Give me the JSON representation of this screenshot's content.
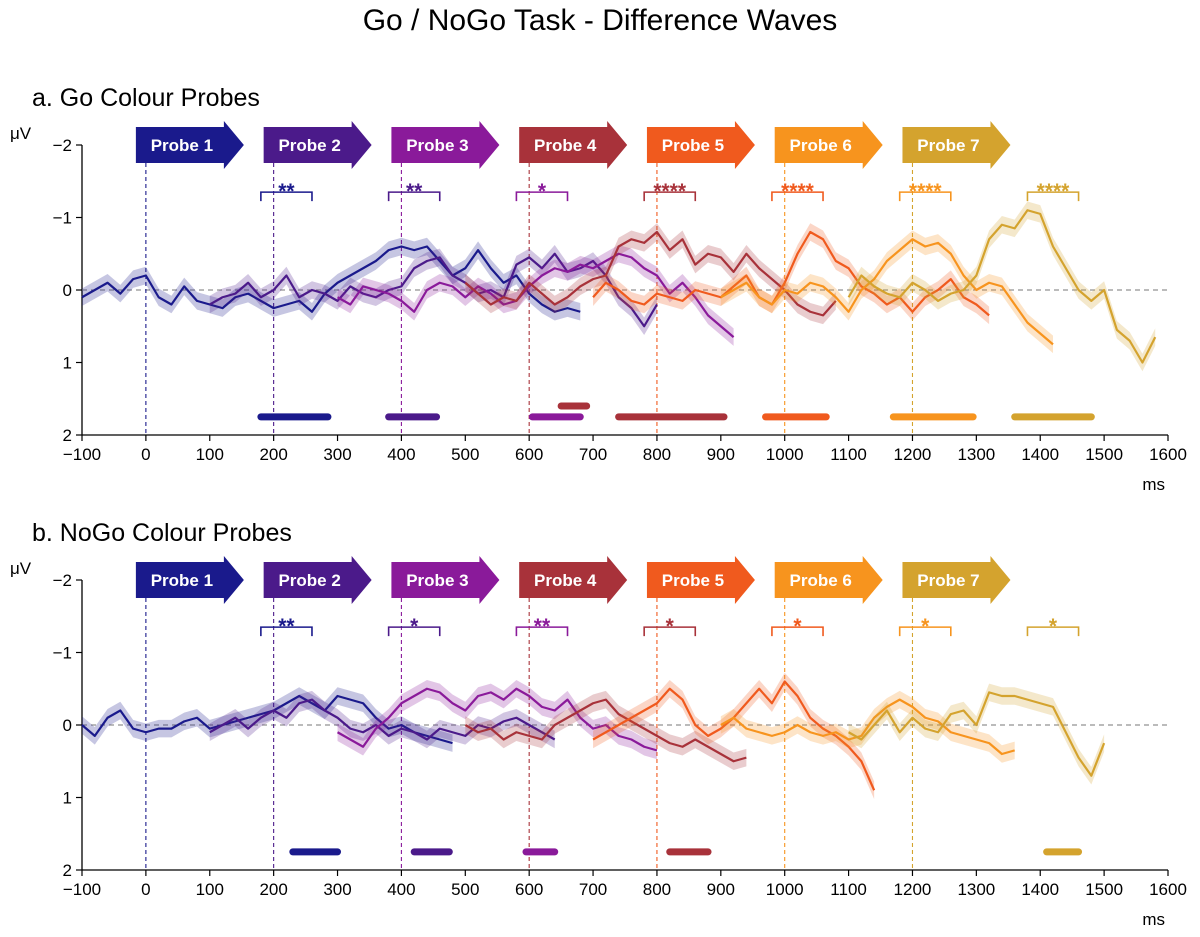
{
  "title": "Go / NoGo Task - Difference Waves",
  "colors": [
    "#1a1a8c",
    "#4b1a8a",
    "#8a1a9a",
    "#a8323a",
    "#f05a1e",
    "#f7941e",
    "#d4a32e"
  ],
  "chart_data": [
    {
      "type": "line",
      "title": "a.   Go Colour Probes",
      "xlabel": "ms",
      "ylabel": "μV",
      "xlim": [
        -100,
        1600
      ],
      "ylim": [
        2,
        -2
      ],
      "y_inverted": true,
      "xticks": [
        "−100",
        "0",
        "100",
        "200",
        "300",
        "400",
        "500",
        "600",
        "700",
        "800",
        "900",
        "1000",
        "1100",
        "1200",
        "1300",
        "1400",
        "1500",
        "1600"
      ],
      "yticks": [
        "−2",
        "−1",
        "0",
        "1",
        "2"
      ],
      "zero_line": "dashed grey",
      "probes": [
        {
          "label": "Probe 1",
          "onset": 0
        },
        {
          "label": "Probe 2",
          "onset": 200
        },
        {
          "label": "Probe 3",
          "onset": 400
        },
        {
          "label": "Probe 4",
          "onset": 600
        },
        {
          "label": "Probe 5",
          "onset": 800
        },
        {
          "label": "Probe 6",
          "onset": 1000
        },
        {
          "label": "Probe 7",
          "onset": 1200
        }
      ],
      "brackets": [
        {
          "from": 180,
          "to": 260,
          "stars": "**",
          "color_index": 0
        },
        {
          "from": 380,
          "to": 460,
          "stars": "**",
          "color_index": 1
        },
        {
          "from": 580,
          "to": 660,
          "stars": "*",
          "color_index": 2
        },
        {
          "from": 780,
          "to": 860,
          "stars": "****",
          "color_index": 3
        },
        {
          "from": 980,
          "to": 1060,
          "stars": "****",
          "color_index": 4
        },
        {
          "from": 1180,
          "to": 1260,
          "stars": "****",
          "color_index": 5
        },
        {
          "from": 1380,
          "to": 1460,
          "stars": "****",
          "color_index": 6
        }
      ],
      "sig_bars": [
        {
          "from": 180,
          "to": 285,
          "y": 1.75,
          "color_index": 0
        },
        {
          "from": 380,
          "to": 455,
          "y": 1.75,
          "color_index": 1
        },
        {
          "from": 605,
          "to": 680,
          "y": 1.75,
          "color_index": 2
        },
        {
          "from": 650,
          "to": 690,
          "y": 1.6,
          "color_index": 3
        },
        {
          "from": 740,
          "to": 905,
          "y": 1.75,
          "color_index": 3
        },
        {
          "from": 970,
          "to": 1065,
          "y": 1.75,
          "color_index": 4
        },
        {
          "from": 1170,
          "to": 1295,
          "y": 1.75,
          "color_index": 5
        },
        {
          "from": 1360,
          "to": 1480,
          "y": 1.75,
          "color_index": 6
        }
      ],
      "series": [
        {
          "color_index": 0,
          "x_start": -100,
          "values": [
            0.1,
            0.0,
            -0.1,
            0.05,
            -0.15,
            -0.2,
            0.1,
            0.2,
            -0.05,
            0.15,
            0.2,
            0.25,
            0.1,
            0.05,
            0.15,
            0.25,
            0.2,
            0.15,
            0.3,
            0.05,
            -0.1,
            -0.2,
            -0.3,
            -0.4,
            -0.55,
            -0.6,
            -0.55,
            -0.6,
            -0.4,
            -0.2,
            -0.3,
            -0.55,
            -0.3,
            -0.1,
            -0.2,
            0.05,
            0.2,
            0.3,
            0.25,
            0.3
          ]
        },
        {
          "color_index": 1,
          "x_start": 100,
          "values": [
            0.2,
            0.1,
            0.05,
            -0.1,
            0.1,
            0.0,
            -0.2,
            0.1,
            0.0,
            0.05,
            0.15,
            -0.05,
            0.05,
            0.1,
            0.0,
            -0.05,
            -0.3,
            -0.4,
            -0.45,
            -0.2,
            -0.1,
            0.05,
            0.0,
            0.1,
            -0.35,
            -0.45,
            -0.3,
            -0.5,
            -0.25,
            -0.3,
            -0.4,
            -0.2,
            0.1,
            0.25,
            0.5,
            0.2
          ]
        },
        {
          "color_index": 2,
          "x_start": 300,
          "values": [
            0.1,
            0.2,
            -0.05,
            0.0,
            0.05,
            0.15,
            0.3,
            0.0,
            -0.1,
            -0.05,
            0.1,
            -0.05,
            0.05,
            0.2,
            0.15,
            -0.05,
            -0.2,
            -0.3,
            -0.25,
            -0.35,
            -0.3,
            -0.4,
            -0.5,
            -0.45,
            -0.3,
            -0.2,
            0.05,
            -0.1,
            0.1,
            0.35,
            0.5,
            0.65
          ]
        },
        {
          "color_index": 3,
          "x_start": 500,
          "values": [
            -0.1,
            0.05,
            0.2,
            0.1,
            0.15,
            -0.1,
            0.05,
            0.2,
            0.1,
            -0.05,
            -0.15,
            -0.2,
            -0.6,
            -0.7,
            -0.65,
            -0.8,
            -0.55,
            -0.7,
            -0.35,
            -0.5,
            -0.45,
            -0.25,
            -0.5,
            -0.3,
            -0.15,
            0.0,
            0.2,
            0.3,
            0.35,
            0.15
          ]
        },
        {
          "color_index": 4,
          "x_start": 700,
          "values": [
            0.1,
            -0.1,
            0.0,
            0.15,
            0.2,
            0.05,
            0.1,
            0.15,
            0.0,
            0.05,
            0.1,
            -0.05,
            -0.2,
            0.1,
            0.2,
            -0.1,
            -0.5,
            -0.8,
            -0.7,
            -0.4,
            -0.3,
            -0.05,
            0.05,
            0.2,
            0.1,
            0.3,
            0.1,
            0.0,
            -0.15,
            0.1,
            0.2,
            0.35
          ]
        },
        {
          "color_index": 5,
          "x_start": 900,
          "values": [
            0.1,
            0.0,
            -0.1,
            0.1,
            0.2,
            0.0,
            0.05,
            -0.1,
            -0.05,
            0.1,
            0.3,
            0.0,
            -0.15,
            -0.4,
            -0.55,
            -0.7,
            -0.6,
            -0.65,
            -0.5,
            -0.2,
            0.0,
            -0.1,
            -0.05,
            0.2,
            0.45,
            0.6,
            0.75
          ]
        },
        {
          "color_index": 6,
          "x_start": 1100,
          "values": [
            0.1,
            -0.2,
            -0.05,
            0.05,
            0.1,
            -0.1,
            0.0,
            0.15,
            0.05,
            0.0,
            -0.2,
            -0.7,
            -0.9,
            -0.85,
            -1.1,
            -1.05,
            -0.6,
            -0.3,
            0.0,
            0.15,
            0.0,
            0.55,
            0.7,
            1.0,
            0.65
          ]
        }
      ]
    },
    {
      "type": "line",
      "title": "b.   NoGo Colour Probes",
      "xlabel": "ms",
      "ylabel": "μV",
      "xlim": [
        -100,
        1600
      ],
      "ylim": [
        2,
        -2
      ],
      "y_inverted": true,
      "xticks": [
        "−100",
        "0",
        "100",
        "200",
        "300",
        "400",
        "500",
        "600",
        "700",
        "800",
        "900",
        "1000",
        "1100",
        "1200",
        "1300",
        "1400",
        "1500",
        "1600"
      ],
      "yticks": [
        "−2",
        "−1",
        "0",
        "1",
        "2"
      ],
      "zero_line": "dashed grey",
      "probes": [
        {
          "label": "Probe 1",
          "onset": 0
        },
        {
          "label": "Probe 2",
          "onset": 200
        },
        {
          "label": "Probe 3",
          "onset": 400
        },
        {
          "label": "Probe 4",
          "onset": 600
        },
        {
          "label": "Probe 5",
          "onset": 800
        },
        {
          "label": "Probe 6",
          "onset": 1000
        },
        {
          "label": "Probe 7",
          "onset": 1200
        }
      ],
      "brackets": [
        {
          "from": 180,
          "to": 260,
          "stars": "**",
          "color_index": 0
        },
        {
          "from": 380,
          "to": 460,
          "stars": "*",
          "color_index": 1
        },
        {
          "from": 580,
          "to": 660,
          "stars": "**",
          "color_index": 2
        },
        {
          "from": 780,
          "to": 860,
          "stars": "*",
          "color_index": 3
        },
        {
          "from": 980,
          "to": 1060,
          "stars": "*",
          "color_index": 4
        },
        {
          "from": 1180,
          "to": 1260,
          "stars": "*",
          "color_index": 5
        },
        {
          "from": 1380,
          "to": 1460,
          "stars": "*",
          "color_index": 6
        }
      ],
      "sig_bars": [
        {
          "from": 230,
          "to": 300,
          "y": 1.75,
          "color_index": 0
        },
        {
          "from": 420,
          "to": 475,
          "y": 1.75,
          "color_index": 1
        },
        {
          "from": 595,
          "to": 640,
          "y": 1.75,
          "color_index": 2
        },
        {
          "from": 820,
          "to": 880,
          "y": 1.75,
          "color_index": 3
        },
        {
          "from": 1410,
          "to": 1460,
          "y": 1.75,
          "color_index": 6
        }
      ],
      "series": [
        {
          "color_index": 0,
          "x_start": -100,
          "values": [
            0.0,
            0.15,
            -0.1,
            -0.2,
            0.05,
            0.1,
            0.05,
            0.05,
            -0.05,
            -0.1,
            0.05,
            0.0,
            -0.05,
            -0.1,
            -0.15,
            -0.2,
            -0.3,
            -0.4,
            -0.3,
            -0.2,
            -0.4,
            -0.35,
            -0.3,
            -0.1,
            0.05,
            0.0,
            0.1,
            0.15,
            0.2,
            0.25
          ]
        },
        {
          "color_index": 1,
          "x_start": 100,
          "values": [
            0.1,
            0.0,
            -0.1,
            0.05,
            -0.1,
            -0.2,
            -0.1,
            -0.3,
            -0.35,
            -0.2,
            -0.1,
            0.05,
            0.1,
            0.0,
            0.15,
            0.05,
            0.1,
            0.2,
            0.05,
            0.1,
            0.15,
            0.0,
            0.05,
            -0.05,
            -0.1,
            0.0,
            0.1,
            0.2
          ]
        },
        {
          "color_index": 2,
          "x_start": 300,
          "values": [
            0.1,
            0.2,
            0.3,
            0.05,
            -0.1,
            -0.3,
            -0.4,
            -0.5,
            -0.45,
            -0.3,
            -0.2,
            -0.4,
            -0.45,
            -0.35,
            -0.5,
            -0.4,
            -0.25,
            -0.2,
            -0.35,
            -0.1,
            0.05,
            0.0,
            0.15,
            0.2,
            0.3,
            0.35
          ]
        },
        {
          "color_index": 3,
          "x_start": 500,
          "values": [
            0.0,
            0.1,
            0.05,
            0.2,
            0.1,
            0.15,
            0.2,
            0.0,
            -0.1,
            -0.2,
            -0.3,
            -0.35,
            -0.15,
            -0.05,
            0.05,
            0.15,
            0.25,
            0.3,
            0.2,
            0.3,
            0.4,
            0.5,
            0.45
          ]
        },
        {
          "color_index": 4,
          "x_start": 700,
          "values": [
            0.2,
            0.1,
            0.0,
            -0.1,
            -0.2,
            -0.3,
            -0.5,
            -0.35,
            0.0,
            0.15,
            0.05,
            -0.1,
            -0.3,
            -0.5,
            -0.3,
            -0.6,
            -0.4,
            -0.1,
            0.05,
            0.15,
            0.3,
            0.5,
            0.9
          ]
        },
        {
          "color_index": 5,
          "x_start": 900,
          "values": [
            0.0,
            -0.1,
            0.05,
            0.1,
            0.15,
            0.1,
            0.0,
            0.1,
            0.15,
            0.1,
            0.2,
            0.15,
            -0.1,
            -0.25,
            -0.35,
            -0.25,
            -0.1,
            -0.05,
            0.1,
            0.15,
            0.2,
            0.25,
            0.4,
            0.35
          ]
        },
        {
          "color_index": 6,
          "x_start": 1100,
          "values": [
            0.1,
            0.2,
            0.0,
            -0.2,
            0.1,
            -0.1,
            0.05,
            0.1,
            -0.15,
            -0.2,
            0.0,
            -0.45,
            -0.4,
            -0.4,
            -0.35,
            -0.3,
            -0.25,
            0.1,
            0.45,
            0.7,
            0.25
          ]
        }
      ]
    }
  ]
}
